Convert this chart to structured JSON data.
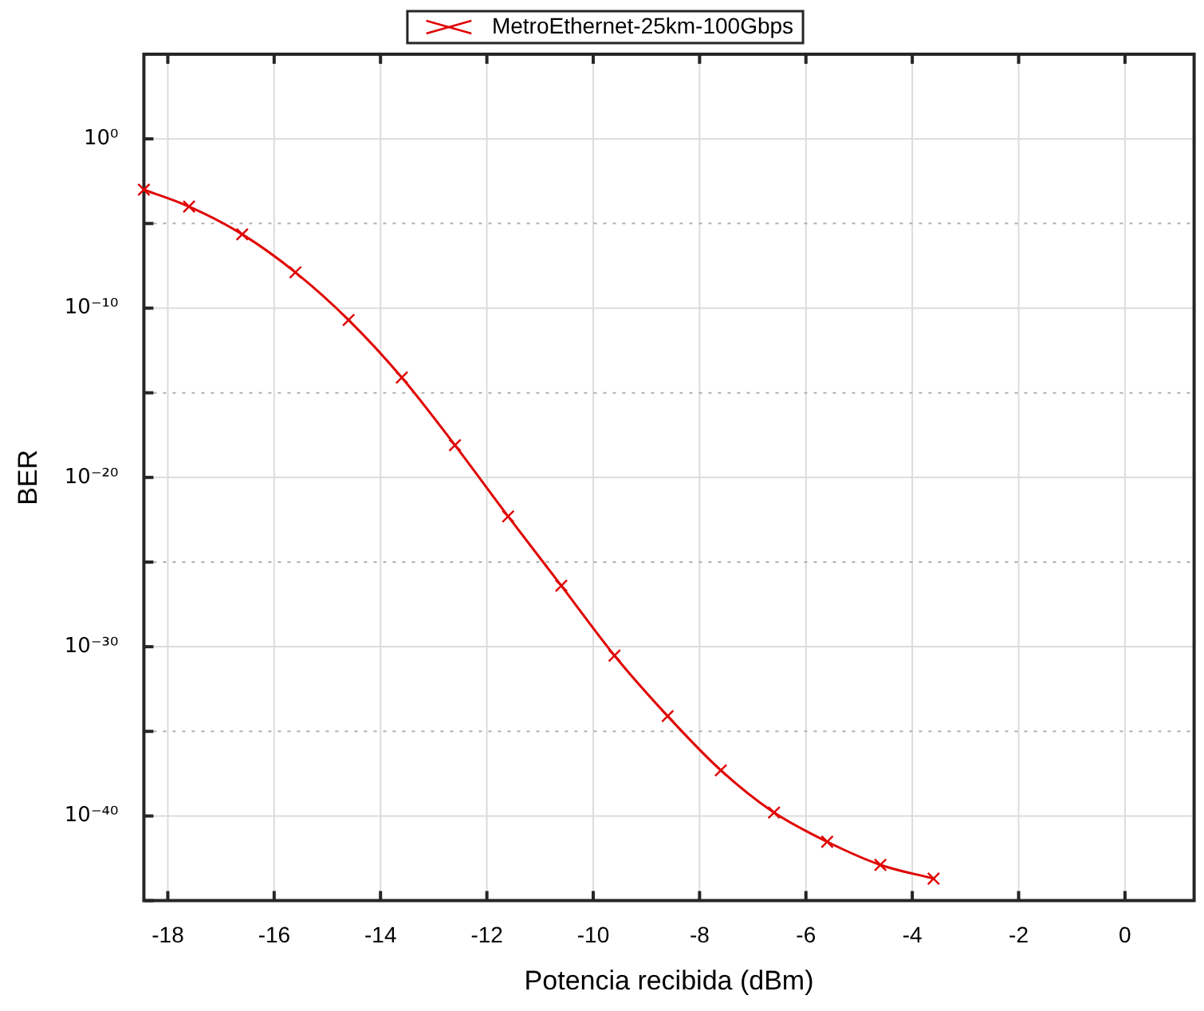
{
  "chart_data": {
    "type": "line",
    "xlabel": "Potencia recibida (dBm)",
    "ylabel": "BER",
    "x": [
      -18.45,
      -17.6,
      -16.6,
      -15.6,
      -14.6,
      -13.6,
      -12.6,
      -11.6,
      -10.6,
      -9.6,
      -8.6,
      -7.6,
      -6.6,
      -5.6,
      -4.6,
      -3.6
    ],
    "series": [
      {
        "name": "MetroEthernet-25km-100Gbps",
        "color": "#e00000",
        "values": [
          0.001,
          0.0001,
          2.3e-06,
          1.3e-08,
          2e-11,
          8e-15,
          8e-19,
          5e-23,
          4e-27,
          3e-31,
          8e-35,
          5e-38,
          1.6e-40,
          3e-42,
          1.3e-43,
          2e-44
        ]
      }
    ],
    "xlim": [
      -18.45,
      1.3
    ],
    "xticks": [
      -18,
      -16,
      -14,
      -12,
      -10,
      -8,
      -6,
      -4,
      -2,
      0
    ],
    "ylim": [
      1e-45,
      100000.0
    ],
    "yticks": [
      {
        "value": 1e-45,
        "label": null
      },
      {
        "value": 1e-40,
        "label": "10⁻⁴⁰"
      },
      {
        "value": 1e-35,
        "label": null
      },
      {
        "value": 1e-30,
        "label": "10⁻³⁰"
      },
      {
        "value": 1e-25,
        "label": null
      },
      {
        "value": 1e-20,
        "label": "10⁻²⁰"
      },
      {
        "value": 1e-15,
        "label": null
      },
      {
        "value": 1e-10,
        "label": "10⁻¹⁰"
      },
      {
        "value": 1e-05,
        "label": null
      },
      {
        "value": 1,
        "label": "10⁰"
      },
      {
        "value": 100000.0,
        "label": null
      }
    ],
    "log": "y",
    "grid": true,
    "legend": "top",
    "marker": "cross",
    "line_style": "solid"
  }
}
